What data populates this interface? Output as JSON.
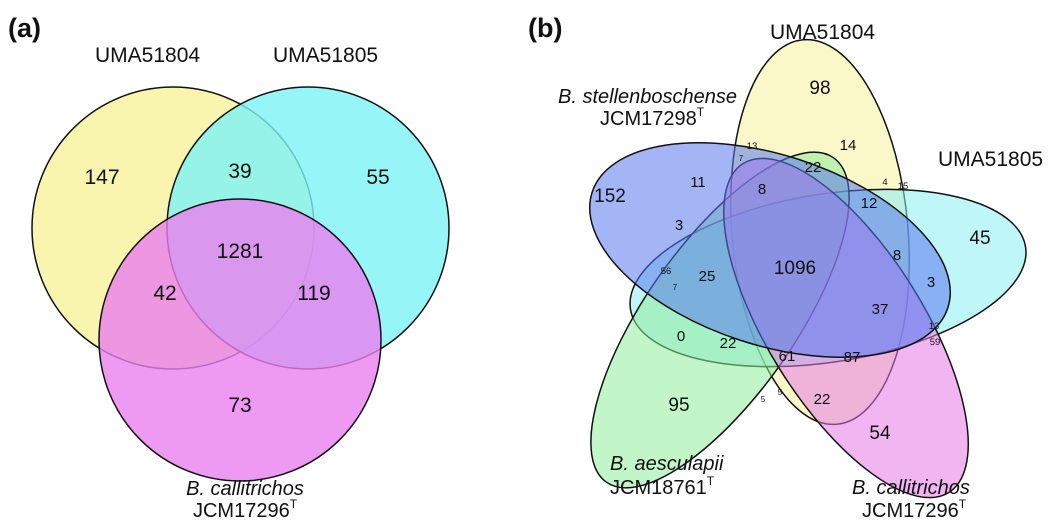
{
  "panels": {
    "a": {
      "label": "(a)",
      "sets": {
        "uma51804": "UMA51804",
        "uma51805": "UMA51805",
        "callitrichos_species": "B. callitrichos",
        "callitrichos_strain": "JCM17296",
        "callitrichos_sup": "T"
      },
      "counts": {
        "uma51804_only": "147",
        "uma51805_only": "55",
        "callitrichos_only": "73",
        "uma51804_uma51805": "39",
        "uma51804_callitrichos": "42",
        "uma51805_callitrichos": "119",
        "all_three": "1281"
      },
      "colors": {
        "uma51804": "#f7f29a",
        "uma51805": "#7cf3f5",
        "callitrichos": "#ea80ef"
      }
    },
    "b": {
      "label": "(b)",
      "sets": {
        "uma51804": "UMA51804",
        "uma51805": "UMA51805",
        "stellenboschense_species": "B. stellenboschense",
        "stellenboschense_strain": "JCM17298",
        "stellenboschense_sup": "T",
        "aesculapii_species": "B. aesculapii",
        "aesculapii_strain": "JCM18761",
        "aesculapii_sup": "T",
        "callitrichos_species": "B. callitrichos",
        "callitrichos_strain": "JCM17296",
        "callitrichos_sup": "T"
      },
      "counts": {
        "uma51804_only": "98",
        "uma51805_only": "45",
        "stellenboschense_only": "152",
        "aesculapii_only": "95",
        "callitrichos_only": "54",
        "core": "1096",
        "r14": "14",
        "r22_top": "22",
        "r8_upper": "8",
        "r12": "12",
        "r11": "11",
        "r3_left": "3",
        "r25": "25",
        "r0": "0",
        "r22_left": "22",
        "r61": "61",
        "r87": "87",
        "r37": "37",
        "r8_right": "8",
        "r3_right": "3",
        "r22_bottom": "22",
        "r13_top": "13",
        "r7_top": "7",
        "r4": "4",
        "r15": "15",
        "r56": "56",
        "r7_left": "7",
        "r13_right": "13",
        "r59": "59",
        "r5_left": "5",
        "r5_right": "5"
      },
      "colors": {
        "uma51804": "#f6f19a",
        "uma51805": "#8beff2",
        "stellenboschense": "#5a78ee",
        "aesculapii": "#8fec9a",
        "callitrichos": "#e57ae8"
      }
    }
  }
}
